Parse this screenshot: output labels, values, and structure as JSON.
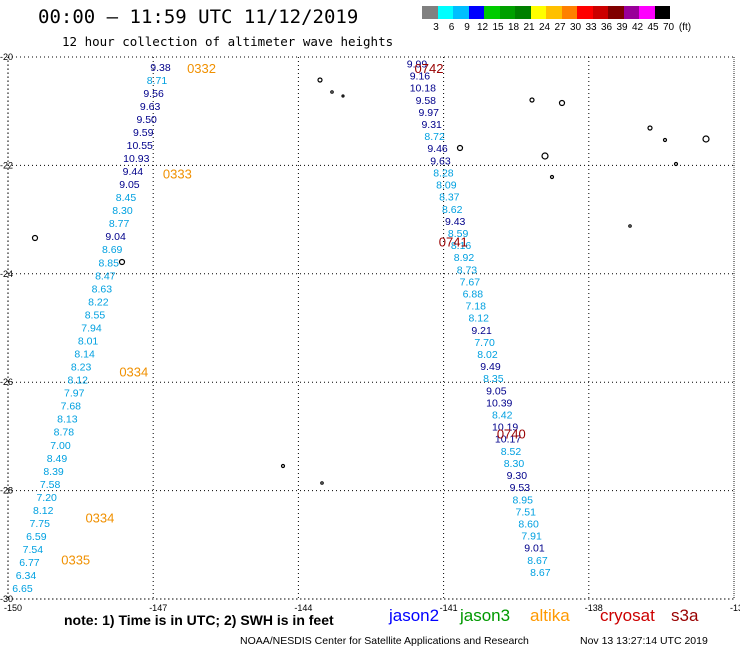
{
  "header": {
    "title": "00:00 – 11:59 UTC 11/12/2019",
    "subtitle": "12 hour collection of altimeter wave heights"
  },
  "color_scale": {
    "unit_label": "(ft)",
    "bins": [
      {
        "color": "#808080",
        "label": "3"
      },
      {
        "color": "#00ffff",
        "label": "6"
      },
      {
        "color": "#00bfff",
        "label": "9"
      },
      {
        "color": "#0000ff",
        "label": "12"
      },
      {
        "color": "#00cc00",
        "label": "15"
      },
      {
        "color": "#00a000",
        "label": "18"
      },
      {
        "color": "#008000",
        "label": "21"
      },
      {
        "color": "#ffff00",
        "label": "24"
      },
      {
        "color": "#ffc000",
        "label": "27"
      },
      {
        "color": "#ff8000",
        "label": "30"
      },
      {
        "color": "#ff0000",
        "label": "33"
      },
      {
        "color": "#cc0000",
        "label": "36"
      },
      {
        "color": "#800000",
        "label": "39"
      },
      {
        "color": "#990099",
        "label": "42"
      },
      {
        "color": "#ff00ff",
        "label": "45"
      },
      {
        "color": "#000000",
        "label": "70"
      }
    ]
  },
  "map": {
    "lon_range": [
      -150,
      -135
    ],
    "lat_range": [
      -30,
      -20
    ],
    "lon_ticks": [
      "-150",
      "-147",
      "-144",
      "-141",
      "-138",
      "-135"
    ],
    "lat_ticks": [
      "-20",
      "-22",
      "-24",
      "-26",
      "-28",
      "-30"
    ],
    "colors": {
      "dark_blue": "#00008b",
      "light_blue": "#00a0e0",
      "orange": "#f09000",
      "dark_red": "#990000"
    },
    "tracks": [
      {
        "values": [
          "9.38",
          "8.71",
          "9.56",
          "9.63",
          "9.50",
          "9.59",
          "10.55",
          "10.93",
          "9.44",
          "9.05",
          "8.45",
          "8.30",
          "8.77",
          "9.04",
          "8.69",
          "8.85",
          "8.47",
          "8.63",
          "8.22",
          "8.55",
          "7.94",
          "8.01",
          "8.14",
          "8.23",
          "8.12",
          "7.97",
          "7.68",
          "8.13",
          "8.78",
          "7.00",
          "8.49",
          "8.39",
          "7.58",
          "7.20",
          "8.12",
          "7.75",
          "6.59",
          "7.54",
          "6.77",
          "6.34",
          "6.65"
        ]
      },
      {
        "values": [
          "9.99",
          "9.16",
          "10.18",
          "9.58",
          "9.97",
          "9.31",
          "8.72",
          "9.46",
          "9.63",
          "8.28",
          "8.09",
          "8.37",
          "8.62",
          "9.43",
          "8.59",
          "8.16",
          "8.92",
          "8.73",
          "7.67",
          "6.88",
          "7.18",
          "8.12",
          "9.21",
          "7.70",
          "8.02",
          "9.49",
          "8.35",
          "9.05",
          "10.39",
          "8.42",
          "10.19",
          "10.17",
          "8.52",
          "8.30",
          "9.30",
          "9.53",
          "8.95",
          "7.51",
          "8.60",
          "7.91",
          "9.01",
          "8.67",
          "8.67"
        ]
      }
    ],
    "time_labels": [
      {
        "text": "0332",
        "lon": -146.3,
        "lat": -20.2,
        "color": "orange"
      },
      {
        "text": "0333",
        "lon": -146.8,
        "lat": -22.15,
        "color": "orange"
      },
      {
        "text": "0334",
        "lon": -147.7,
        "lat": -25.8,
        "color": "orange"
      },
      {
        "text": "0334",
        "lon": -148.4,
        "lat": -28.5,
        "color": "orange"
      },
      {
        "text": "0335",
        "lon": -148.9,
        "lat": -29.27,
        "color": "orange"
      },
      {
        "text": "0742",
        "lon": -141.6,
        "lat": -20.2,
        "color": "dark_red"
      },
      {
        "text": "0741",
        "lon": -141.1,
        "lat": -23.4,
        "color": "dark_red"
      },
      {
        "text": "0740",
        "lon": -139.9,
        "lat": -26.95,
        "color": "dark_red"
      }
    ]
  },
  "footer": {
    "note": "note: 1) Time is in UTC; 2) SWH is in feet",
    "satellites": [
      {
        "name": "jason2",
        "color": "#0000ff"
      },
      {
        "name": "jason3",
        "color": "#009900"
      },
      {
        "name": "altika",
        "color": "#ff9900"
      },
      {
        "name": "cryosat",
        "color": "#cc0000"
      },
      {
        "name": "s3a",
        "color": "#990000"
      }
    ],
    "credit": "NOAA/NESDIS Center for Satellite Applications and Research",
    "timestamp": "Nov 13 13:27:14 UTC 2019"
  }
}
